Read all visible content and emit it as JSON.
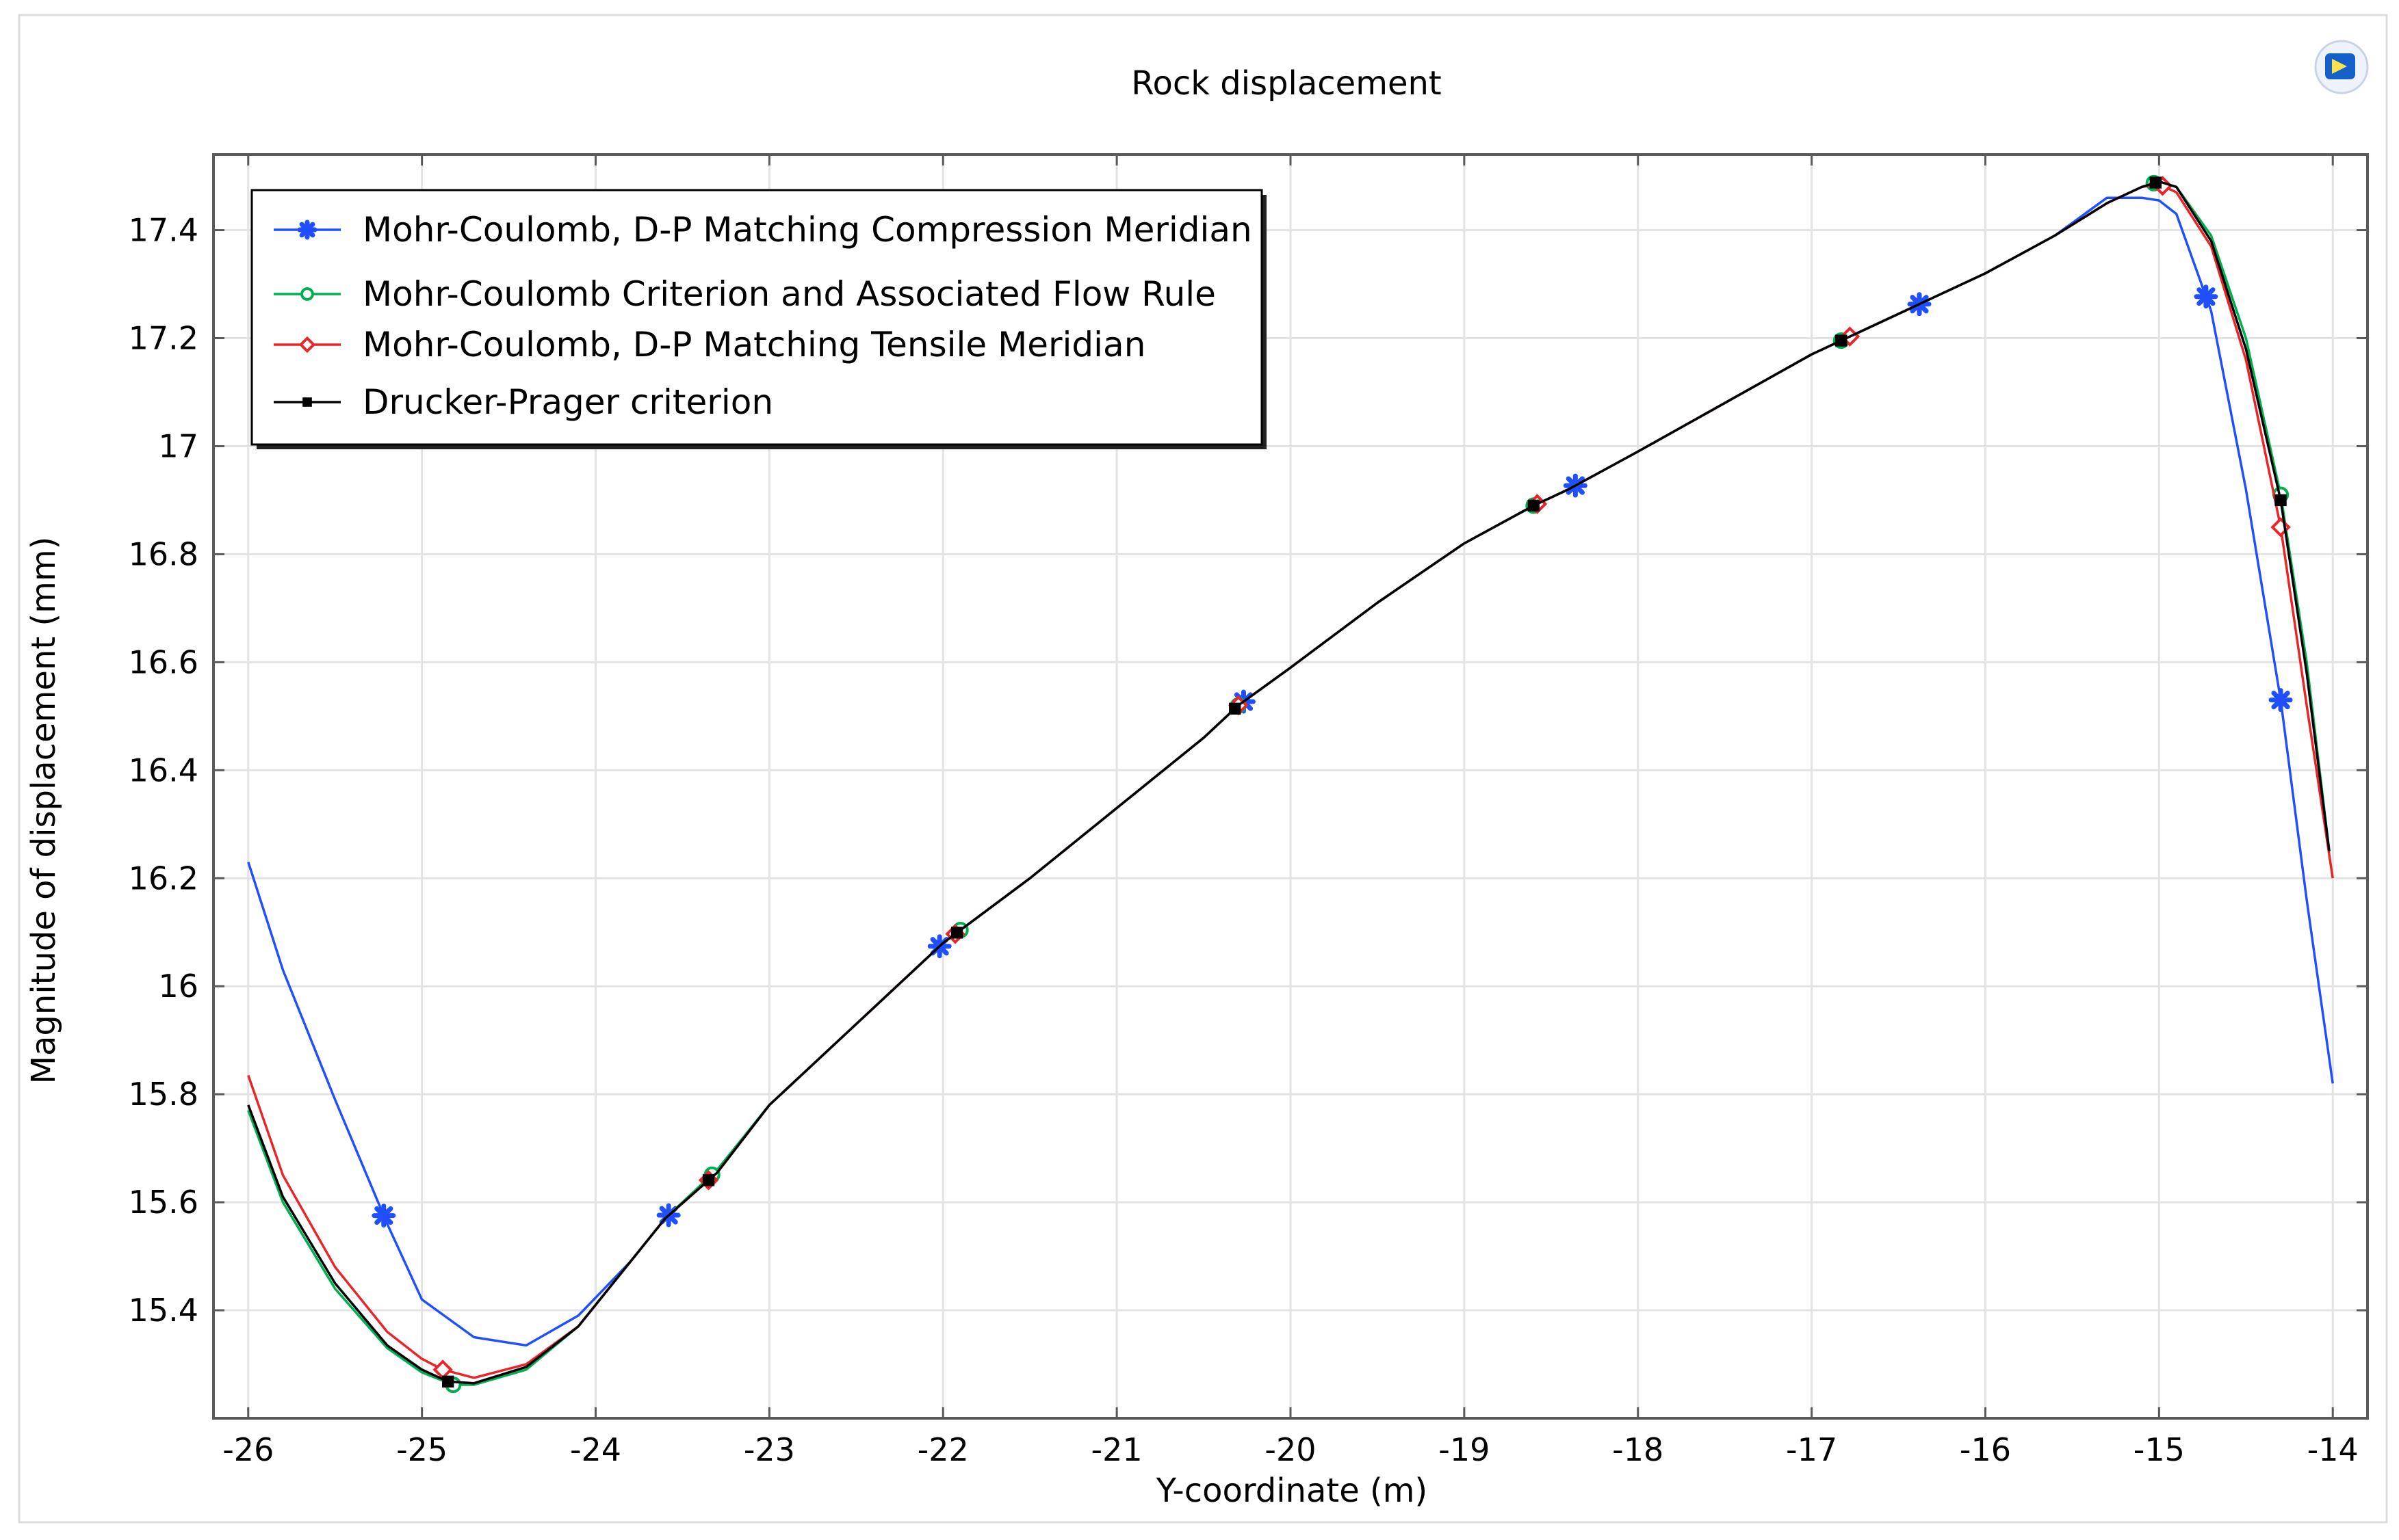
{
  "chart_data": {
    "type": "line",
    "title": "Rock displacement",
    "xlabel": "Y-coordinate (m)",
    "ylabel": "Magnitude of displacement (mm)",
    "xlim": [
      -26.2,
      -13.8
    ],
    "ylim": [
      15.2,
      17.54
    ],
    "xticks": [
      -26,
      -25,
      -24,
      -23,
      -22,
      -21,
      -20,
      -19,
      -18,
      -17,
      -16,
      -15,
      -14
    ],
    "yticks": [
      15.4,
      15.6,
      15.8,
      16,
      16.2,
      16.4,
      16.6,
      16.8,
      17,
      17.2,
      17.4
    ],
    "grid": true,
    "legend_position": "top-left",
    "series": [
      {
        "name": "Mohr-Coulomb, D-P Matching Compression Meridian",
        "color": "#1f4fff",
        "marker": "star",
        "x": [
          -26,
          -25.8,
          -25.5,
          -25.2,
          -25,
          -24.7,
          -24.4,
          -24.1,
          -23.8,
          -23.6,
          -23.3,
          -23,
          -22.5,
          -22,
          -21.5,
          -21,
          -20.5,
          -20.3,
          -20,
          -19.5,
          -19,
          -18.6,
          -18.4,
          -18,
          -17.5,
          -17,
          -16.8,
          -16.4,
          -16,
          -15.6,
          -15.3,
          -15.1,
          -15,
          -14.9,
          -14.7,
          -14.5,
          -14.3,
          -14.15,
          -14
        ],
        "y": [
          16.23,
          16.03,
          15.79,
          15.56,
          15.42,
          15.35,
          15.335,
          15.39,
          15.49,
          15.57,
          15.66,
          15.78,
          15.93,
          16.08,
          16.2,
          16.33,
          16.46,
          16.52,
          16.59,
          16.71,
          16.82,
          16.89,
          16.92,
          16.99,
          17.08,
          17.17,
          17.2,
          17.26,
          17.32,
          17.39,
          17.46,
          17.46,
          17.455,
          17.43,
          17.25,
          16.92,
          16.53,
          16.16,
          15.82
        ],
        "marker_x": [
          -25.22,
          -23.58,
          -22.02,
          -20.27,
          -18.36,
          -16.38,
          -14.73,
          -14.3
        ]
      },
      {
        "name": "Mohr-Coulomb Criterion and Associated Flow Rule",
        "color": "#00b050",
        "marker": "circle",
        "x": [
          -26,
          -25.8,
          -25.5,
          -25.2,
          -25,
          -24.82,
          -24.7,
          -24.4,
          -24.1,
          -23.8,
          -23.6,
          -23.3,
          -23,
          -22.5,
          -22,
          -21.5,
          -21,
          -20.5,
          -20.3,
          -20,
          -19.5,
          -19,
          -18.6,
          -18.4,
          -18,
          -17.5,
          -17,
          -16.8,
          -16.4,
          -16,
          -15.6,
          -15.3,
          -15.1,
          -15,
          -14.9,
          -14.7,
          -14.5,
          -14.3,
          -14.15,
          -14.02
        ],
        "y": [
          15.77,
          15.6,
          15.44,
          15.33,
          15.285,
          15.262,
          15.262,
          15.29,
          15.37,
          15.49,
          15.57,
          15.66,
          15.78,
          15.93,
          16.08,
          16.2,
          16.33,
          16.46,
          16.52,
          16.59,
          16.71,
          16.82,
          16.89,
          16.92,
          16.99,
          17.08,
          17.17,
          17.2,
          17.26,
          17.32,
          17.39,
          17.45,
          17.48,
          17.49,
          17.48,
          17.39,
          17.2,
          16.91,
          16.6,
          16.25
        ],
        "marker_x": [
          -24.82,
          -23.33,
          -21.9,
          -20.3,
          -18.6,
          -16.83,
          -15.03,
          -14.3
        ]
      },
      {
        "name": "Mohr-Coulomb, D-P Matching Tensile Meridian",
        "color": "#e8262a",
        "marker": "diamond",
        "x": [
          -26,
          -25.8,
          -25.5,
          -25.2,
          -25,
          -24.88,
          -24.7,
          -24.4,
          -24.1,
          -23.8,
          -23.6,
          -23.3,
          -23,
          -22.5,
          -22,
          -21.5,
          -21,
          -20.5,
          -20.3,
          -20,
          -19.5,
          -19,
          -18.6,
          -18.4,
          -18,
          -17.5,
          -17,
          -16.8,
          -16.4,
          -16,
          -15.6,
          -15.3,
          -15.1,
          -15,
          -14.9,
          -14.7,
          -14.5,
          -14.3,
          -14.15,
          -14
        ],
        "y": [
          15.835,
          15.65,
          15.48,
          15.36,
          15.31,
          15.29,
          15.275,
          15.3,
          15.37,
          15.49,
          15.57,
          15.655,
          15.78,
          15.93,
          16.08,
          16.2,
          16.33,
          16.46,
          16.52,
          16.59,
          16.71,
          16.82,
          16.89,
          16.92,
          16.99,
          17.08,
          17.17,
          17.2,
          17.26,
          17.32,
          17.39,
          17.45,
          17.48,
          17.485,
          17.47,
          17.37,
          17.16,
          16.85,
          16.52,
          16.2
        ],
        "marker_x": [
          -24.88,
          -23.35,
          -21.93,
          -20.3,
          -18.58,
          -16.78,
          -14.98,
          -14.3
        ]
      },
      {
        "name": "Drucker-Prager criterion",
        "color": "#000000",
        "marker": "square",
        "x": [
          -26,
          -25.8,
          -25.5,
          -25.2,
          -25,
          -24.85,
          -24.7,
          -24.4,
          -24.1,
          -23.8,
          -23.6,
          -23.3,
          -23,
          -22.5,
          -22,
          -21.5,
          -21,
          -20.5,
          -20.3,
          -20,
          -19.5,
          -19,
          -18.6,
          -18.4,
          -18,
          -17.5,
          -17,
          -16.8,
          -16.4,
          -16,
          -15.6,
          -15.3,
          -15.1,
          -15,
          -14.9,
          -14.7,
          -14.5,
          -14.3,
          -14.15,
          -14.02
        ],
        "y": [
          15.78,
          15.61,
          15.45,
          15.335,
          15.29,
          15.268,
          15.265,
          15.295,
          15.37,
          15.49,
          15.57,
          15.655,
          15.78,
          15.93,
          16.08,
          16.2,
          16.33,
          16.46,
          16.52,
          16.59,
          16.71,
          16.82,
          16.89,
          16.92,
          16.99,
          17.08,
          17.17,
          17.2,
          17.26,
          17.32,
          17.39,
          17.45,
          17.48,
          17.49,
          17.48,
          17.38,
          17.18,
          16.9,
          16.58,
          16.25
        ],
        "marker_x": [
          -24.85,
          -23.35,
          -21.92,
          -20.32,
          -18.6,
          -16.83,
          -15.02,
          -14.3
        ]
      }
    ]
  },
  "ui": {
    "logo_icon": "comsol-logo-icon"
  }
}
